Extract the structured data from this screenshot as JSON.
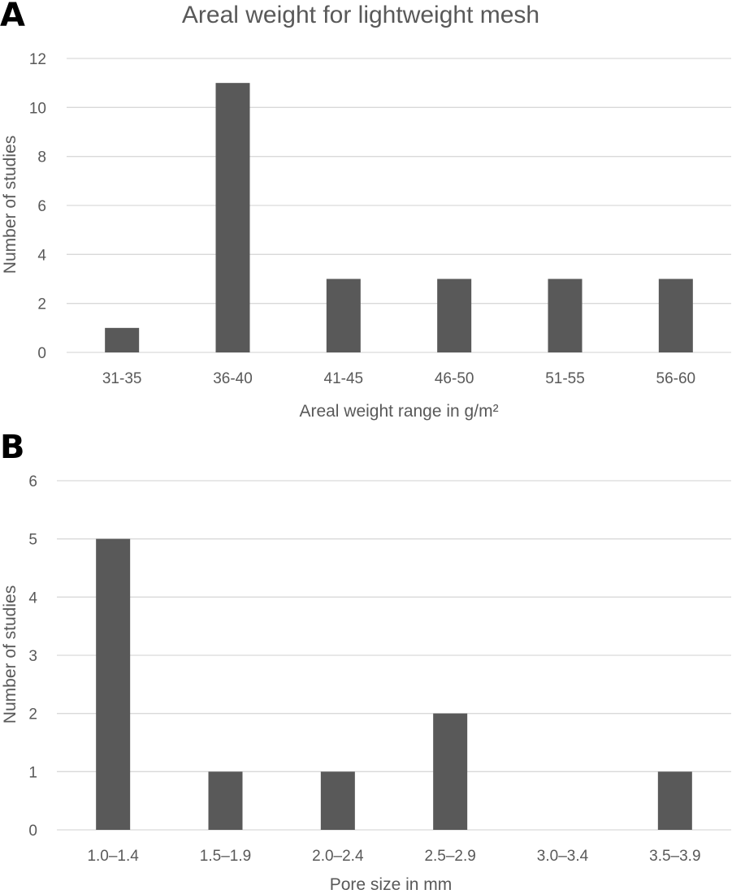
{
  "chart_data": [
    {
      "panel": "A",
      "type": "bar",
      "title": "Areal weight for lightweight mesh",
      "xlabel": "Areal weight range in g/m²",
      "ylabel": "Number of studies",
      "categories": [
        "31-35",
        "36-40",
        "41-45",
        "46-50",
        "51-55",
        "56-60"
      ],
      "values": [
        1,
        11,
        3,
        3,
        3,
        3
      ],
      "ylim": [
        0,
        12
      ],
      "yticks": [
        0,
        2,
        4,
        6,
        8,
        10,
        12
      ],
      "grid": true,
      "legend": "none",
      "bar_color": "#595959"
    },
    {
      "panel": "B",
      "type": "bar",
      "title": "",
      "xlabel": "Pore size in mm",
      "ylabel": "Number of studies",
      "categories": [
        "1.0–1.4",
        "1.5–1.9",
        "2.0–2.4",
        "2.5–2.9",
        "3.0–3.4",
        "3.5–3.9"
      ],
      "values": [
        5,
        1,
        1,
        2,
        0,
        1
      ],
      "ylim": [
        0,
        6
      ],
      "yticks": [
        0,
        1,
        2,
        3,
        4,
        5,
        6
      ],
      "grid": true,
      "legend": "none",
      "bar_color": "#595959"
    }
  ]
}
